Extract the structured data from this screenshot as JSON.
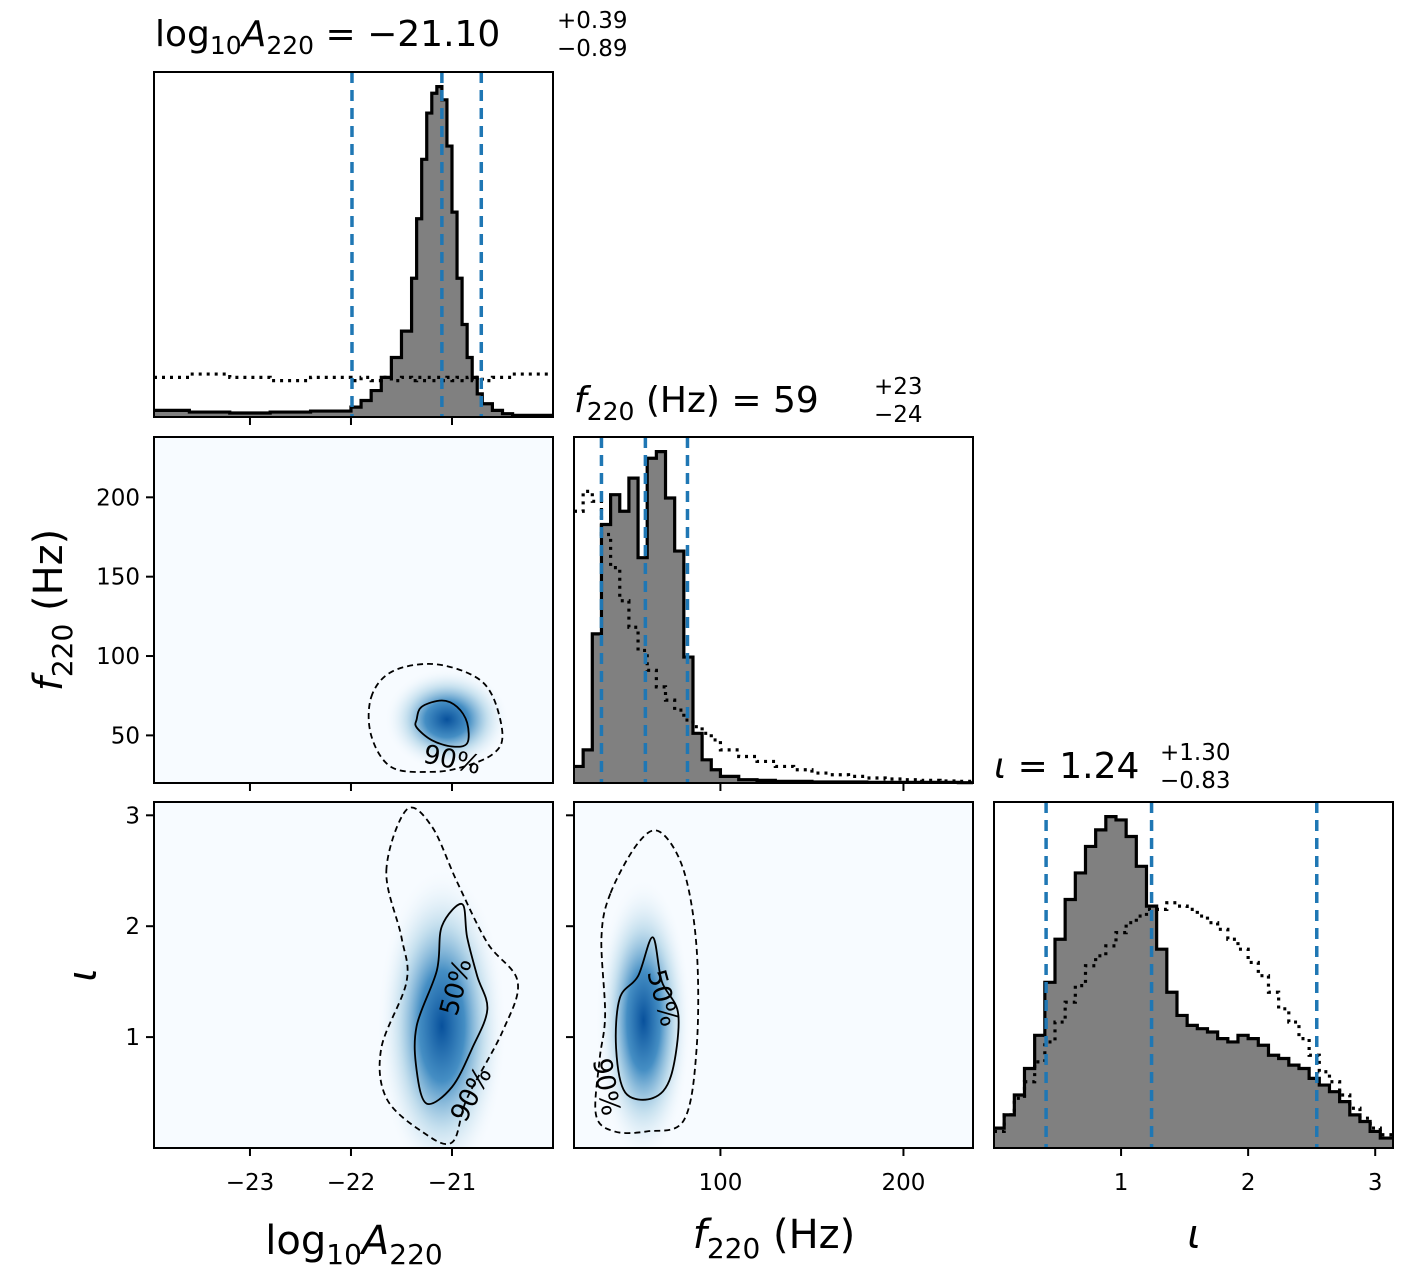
{
  "chart_data": {
    "type": "corner",
    "parameters": [
      {
        "key": "logA",
        "label_main": "log",
        "label_sub1": "10",
        "label_var": "A",
        "label_sub2": "220",
        "xlim": [
          -23.95,
          -20.0
        ],
        "ticks": [
          -23,
          -22,
          -21
        ],
        "tick_labels": [
          "−23",
          "−22",
          "−21"
        ]
      },
      {
        "key": "f",
        "label_var": "f",
        "label_sub": "220",
        "label_unit": " (Hz)",
        "xlim": [
          20,
          238
        ],
        "ticks": [
          100,
          200
        ],
        "tick_labels": [
          "100",
          "200"
        ],
        "y_ticks": [
          50,
          100,
          150,
          200
        ],
        "y_tick_labels": [
          "50",
          "100",
          "150",
          "200"
        ]
      },
      {
        "key": "iota",
        "label_var": "ι",
        "xlim": [
          0.0,
          3.14
        ],
        "ticks": [
          1,
          2,
          3
        ],
        "tick_labels": [
          "1",
          "2",
          "3"
        ]
      }
    ],
    "titles": [
      {
        "prefix_main": "log",
        "prefix_sub1": "10",
        "prefix_var": "A",
        "prefix_sub2": "220",
        "eq": " = −21.10",
        "plus": "+0.39",
        "minus": "−0.89"
      },
      {
        "prefix_var": "f",
        "prefix_sub": "220",
        "prefix_unit": " (Hz)",
        "eq": " = 59",
        "plus": "+23",
        "minus": "−24"
      },
      {
        "prefix_var": "ι",
        "eq": " = 1.24",
        "plus": "+1.30",
        "minus": "−0.83"
      }
    ],
    "marginals": {
      "logA": {
        "bin_edges": [
          -23.95,
          -23.6,
          -23.2,
          -22.8,
          -22.4,
          -22.0,
          -21.9,
          -21.8,
          -21.7,
          -21.6,
          -21.5,
          -21.4,
          -21.35,
          -21.3,
          -21.25,
          -21.2,
          -21.15,
          -21.1,
          -21.05,
          -21.0,
          -20.95,
          -20.9,
          -20.85,
          -20.8,
          -20.75,
          -20.7,
          -20.6,
          -20.5,
          -20.4,
          -20.0
        ],
        "posterior": [
          0.02,
          0.015,
          0.012,
          0.015,
          0.018,
          0.03,
          0.05,
          0.08,
          0.12,
          0.18,
          0.26,
          0.42,
          0.6,
          0.78,
          0.92,
          0.98,
          1.0,
          0.96,
          0.82,
          0.62,
          0.42,
          0.28,
          0.18,
          0.12,
          0.07,
          0.04,
          0.02,
          0.01,
          0.005
        ],
        "prior": [
          0.12,
          0.13,
          0.12,
          0.11,
          0.12,
          0.11,
          0.12,
          0.11,
          0.12,
          0.11,
          0.12,
          0.11,
          0.12,
          0.11,
          0.12,
          0.11,
          0.12,
          0.11,
          0.12,
          0.11,
          0.12,
          0.11,
          0.12,
          0.11,
          0.12,
          0.11,
          0.12,
          0.12,
          0.13
        ],
        "quantiles": [
          -21.99,
          -21.1,
          -20.71
        ]
      },
      "f": {
        "bin_edges": [
          20,
          25,
          30,
          35,
          40,
          45,
          50,
          55,
          60,
          65,
          70,
          75,
          80,
          85,
          90,
          95,
          100,
          110,
          120,
          130,
          140,
          150,
          160,
          170,
          180,
          190,
          200,
          210,
          220,
          230,
          238
        ],
        "posterior": [
          0.05,
          0.1,
          0.45,
          0.78,
          0.87,
          0.82,
          0.92,
          0.68,
          0.98,
          1.0,
          0.86,
          0.7,
          0.38,
          0.15,
          0.07,
          0.04,
          0.02,
          0.01,
          0.008,
          0.005,
          0.005,
          0.003,
          0.003,
          0.003,
          0.002,
          0.002,
          0.002,
          0.002,
          0.002,
          0.001
        ],
        "prior": [
          0.82,
          0.88,
          0.85,
          0.75,
          0.65,
          0.55,
          0.47,
          0.4,
          0.34,
          0.29,
          0.25,
          0.22,
          0.19,
          0.17,
          0.15,
          0.13,
          0.1,
          0.08,
          0.065,
          0.05,
          0.04,
          0.03,
          0.025,
          0.02,
          0.015,
          0.012,
          0.01,
          0.008,
          0.006,
          0.005
        ],
        "quantiles": [
          35,
          59,
          82
        ]
      },
      "iota": {
        "bin_edges": [
          0.0,
          0.08,
          0.16,
          0.24,
          0.32,
          0.4,
          0.48,
          0.56,
          0.64,
          0.72,
          0.8,
          0.88,
          0.96,
          1.04,
          1.12,
          1.2,
          1.28,
          1.36,
          1.44,
          1.52,
          1.6,
          1.68,
          1.76,
          1.84,
          1.92,
          2.0,
          2.08,
          2.16,
          2.24,
          2.32,
          2.4,
          2.48,
          2.56,
          2.64,
          2.72,
          2.8,
          2.88,
          2.96,
          3.04,
          3.14
        ],
        "posterior": [
          0.06,
          0.1,
          0.16,
          0.24,
          0.34,
          0.5,
          0.63,
          0.75,
          0.83,
          0.91,
          0.96,
          1.0,
          0.99,
          0.94,
          0.85,
          0.73,
          0.6,
          0.47,
          0.4,
          0.37,
          0.36,
          0.35,
          0.33,
          0.32,
          0.34,
          0.33,
          0.31,
          0.28,
          0.27,
          0.25,
          0.24,
          0.21,
          0.19,
          0.17,
          0.14,
          0.1,
          0.08,
          0.05,
          0.03
        ],
        "prior": [
          0.05,
          0.1,
          0.15,
          0.2,
          0.26,
          0.32,
          0.38,
          0.44,
          0.49,
          0.55,
          0.58,
          0.61,
          0.65,
          0.68,
          0.7,
          0.72,
          0.72,
          0.74,
          0.73,
          0.72,
          0.7,
          0.68,
          0.66,
          0.63,
          0.6,
          0.56,
          0.52,
          0.47,
          0.42,
          0.38,
          0.33,
          0.28,
          0.23,
          0.2,
          0.16,
          0.12,
          0.09,
          0.06,
          0.04
        ],
        "quantiles": [
          0.41,
          1.24,
          2.54
        ]
      }
    },
    "joints": [
      {
        "x": "logA",
        "y": "f",
        "ylim": [
          20,
          238
        ],
        "peak": {
          "x": -21.05,
          "y": 60
        },
        "contours": [
          {
            "label": "90%",
            "style": "dashed",
            "points": [
              [
                -21.8,
                74
              ],
              [
                -21.6,
                90
              ],
              [
                -21.2,
                95
              ],
              [
                -20.8,
                88
              ],
              [
                -20.6,
                75
              ],
              [
                -20.5,
                50
              ],
              [
                -20.6,
                38
              ],
              [
                -20.9,
                30
              ],
              [
                -21.2,
                27
              ],
              [
                -21.6,
                30
              ],
              [
                -21.8,
                50
              ]
            ]
          },
          {
            "label": "",
            "style": "solid",
            "points": [
              [
                -21.35,
                60
              ],
              [
                -21.3,
                68
              ],
              [
                -21.1,
                72
              ],
              [
                -20.95,
                68
              ],
              [
                -20.85,
                58
              ],
              [
                -20.85,
                45
              ],
              [
                -21.0,
                43
              ],
              [
                -21.2,
                47
              ],
              [
                -21.35,
                55
              ]
            ]
          }
        ]
      },
      {
        "x": "logA",
        "y": "iota",
        "ylim": [
          0.0,
          3.12
        ],
        "peak": {
          "x": -21.1,
          "y": 1.1
        },
        "contours": [
          {
            "label": "90%",
            "style": "dashed",
            "points": [
              [
                -21.65,
                2.5
              ],
              [
                -21.45,
                3.05
              ],
              [
                -21.2,
                2.9
              ],
              [
                -20.95,
                2.4
              ],
              [
                -20.65,
                1.85
              ],
              [
                -20.35,
                1.5
              ],
              [
                -20.5,
                1.05
              ],
              [
                -20.85,
                0.45
              ],
              [
                -21.0,
                0.05
              ],
              [
                -21.3,
                0.15
              ],
              [
                -21.65,
                0.45
              ],
              [
                -21.7,
                0.9
              ],
              [
                -21.45,
                1.5
              ],
              [
                -21.5,
                1.9
              ]
            ]
          },
          {
            "label": "50%",
            "style": "solid",
            "points": [
              [
                -21.1,
                2.0
              ],
              [
                -20.9,
                2.2
              ],
              [
                -20.85,
                1.9
              ],
              [
                -20.75,
                1.55
              ],
              [
                -20.65,
                1.25
              ],
              [
                -20.8,
                0.9
              ],
              [
                -21.0,
                0.55
              ],
              [
                -21.25,
                0.4
              ],
              [
                -21.35,
                0.7
              ],
              [
                -21.35,
                1.1
              ],
              [
                -21.15,
                1.6
              ]
            ]
          }
        ]
      },
      {
        "x": "f",
        "y": "iota",
        "ylim": [
          0.0,
          3.12
        ],
        "peak": {
          "x": 58,
          "y": 1.15
        },
        "contours": [
          {
            "label": "90%",
            "style": "dashed",
            "points": [
              [
                40,
                2.3
              ],
              [
                55,
                2.75
              ],
              [
                67,
                2.85
              ],
              [
                80,
                2.5
              ],
              [
                87,
                1.8
              ],
              [
                87,
                0.9
              ],
              [
                80,
                0.25
              ],
              [
                60,
                0.15
              ],
              [
                42,
                0.15
              ],
              [
                32,
                0.3
              ],
              [
                34,
                0.8
              ],
              [
                37,
                1.2
              ],
              [
                35,
                1.9
              ]
            ]
          },
          {
            "label": "50%",
            "style": "solid",
            "points": [
              [
                63,
                1.9
              ],
              [
                68,
                1.5
              ],
              [
                77,
                1.2
              ],
              [
                73,
                0.65
              ],
              [
                63,
                0.45
              ],
              [
                48,
                0.5
              ],
              [
                43,
                0.9
              ],
              [
                45,
                1.35
              ],
              [
                55,
                1.55
              ]
            ]
          }
        ]
      }
    ]
  }
}
